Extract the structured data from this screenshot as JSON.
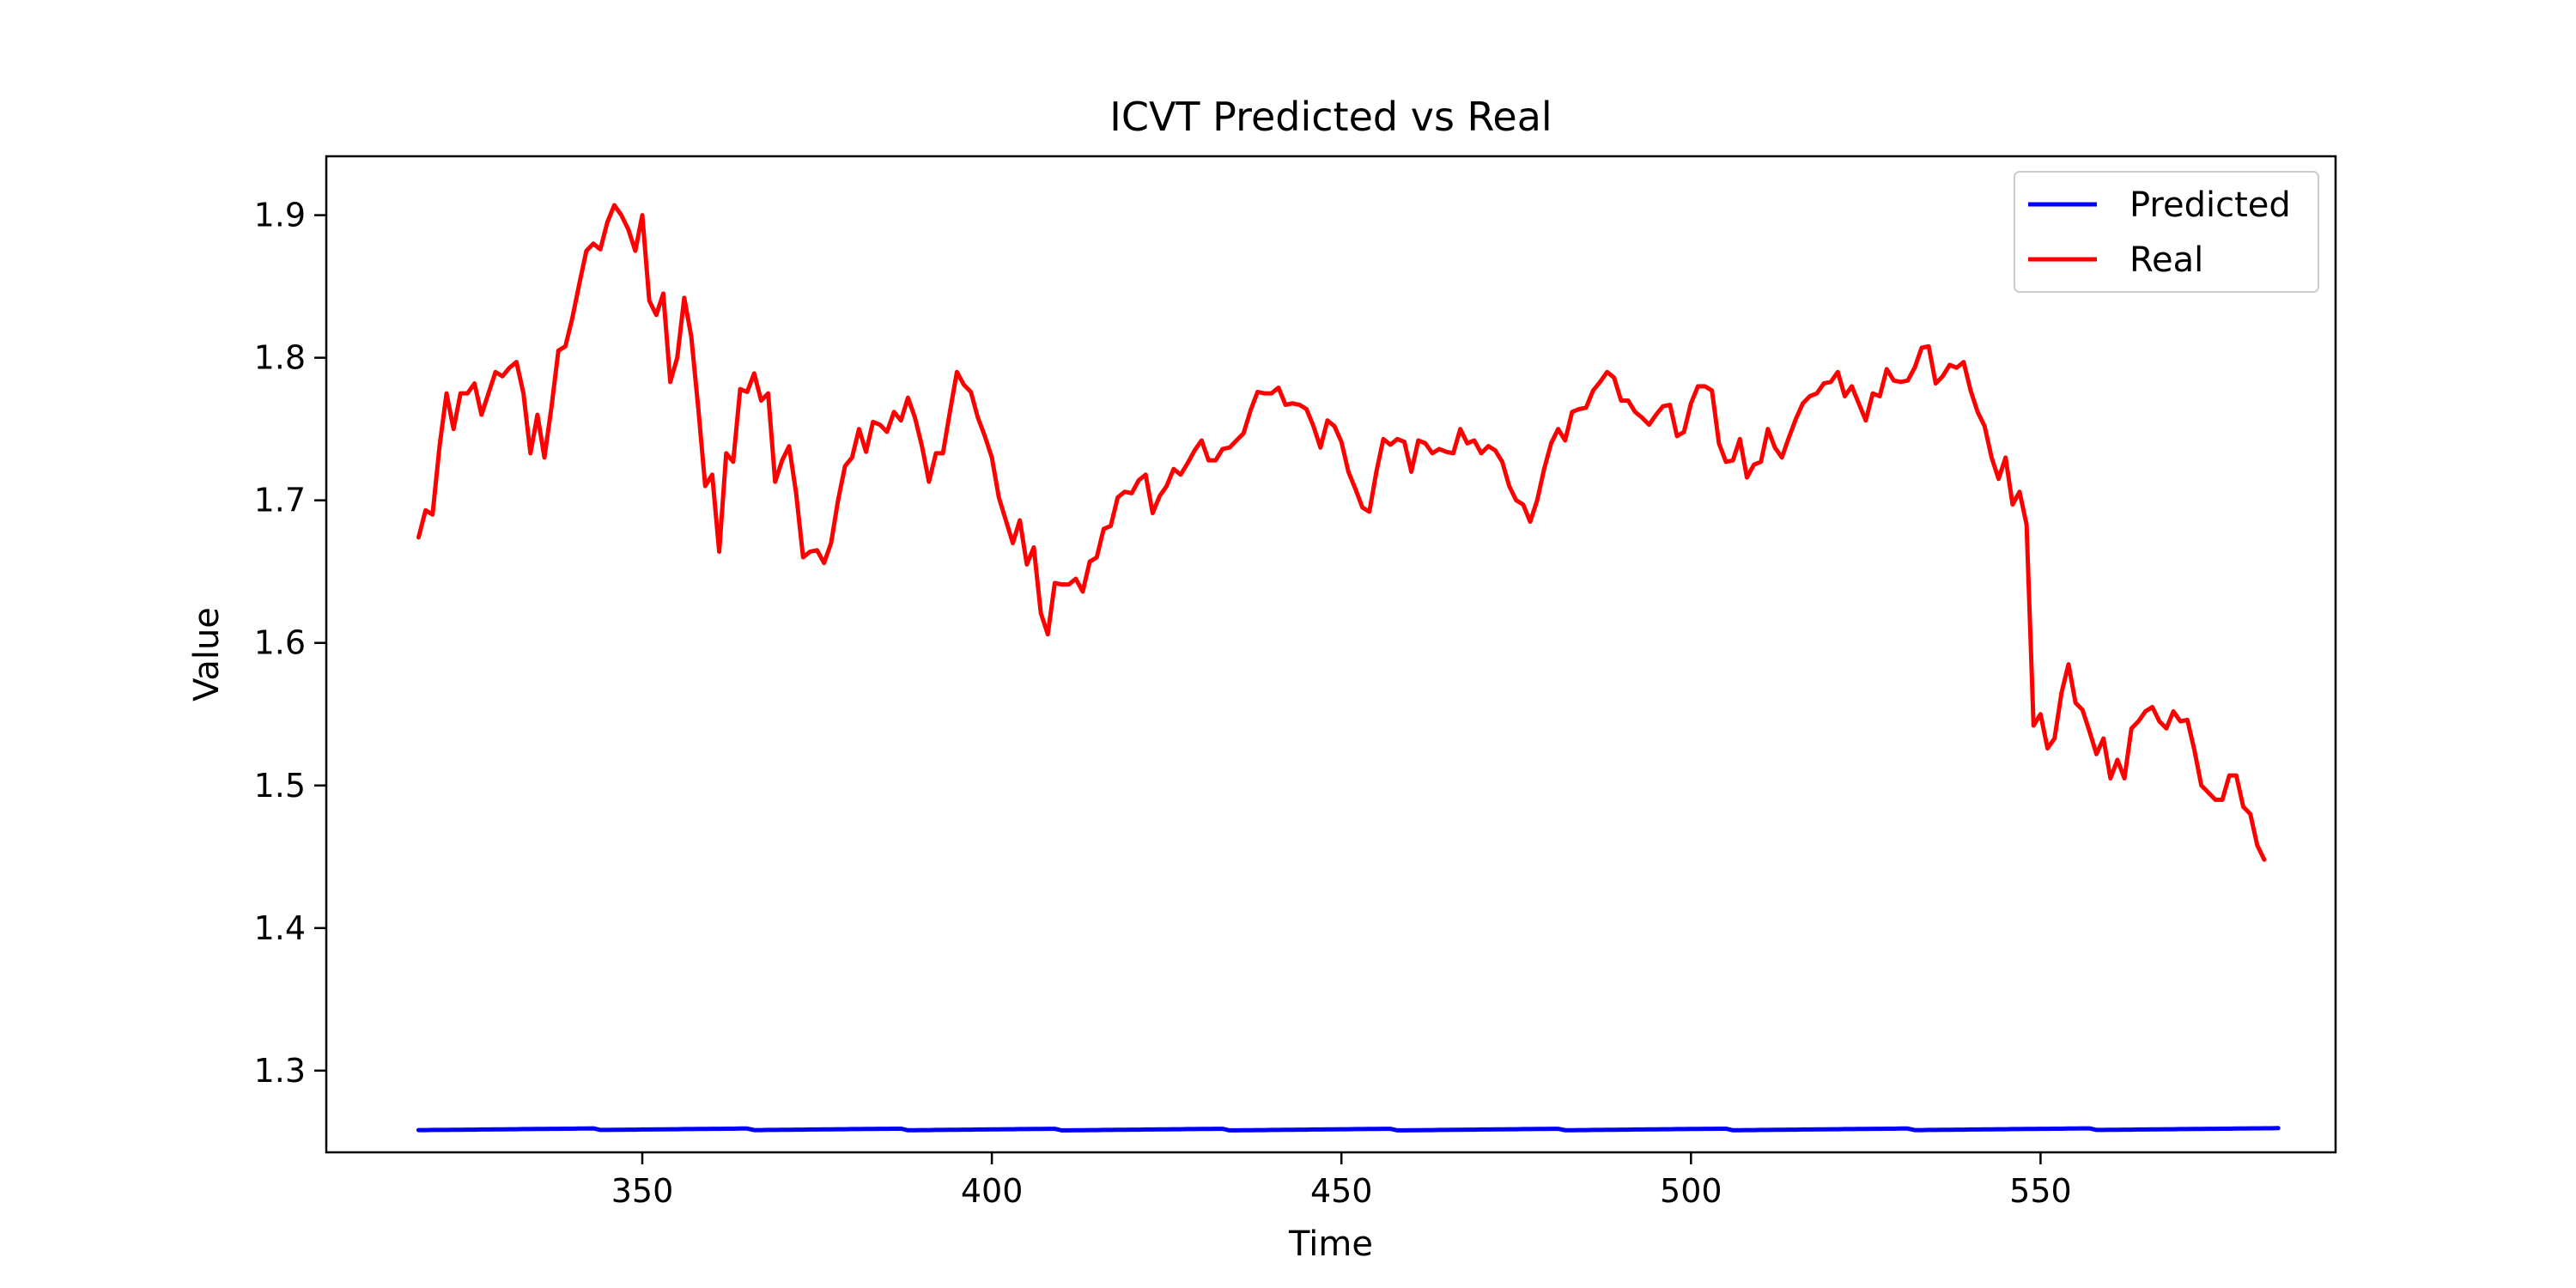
{
  "chart_data": {
    "type": "line",
    "title": "ICVT Predicted vs Real",
    "xlabel": "Time",
    "ylabel": "Value",
    "xlim": [
      304.8,
      592.2
    ],
    "ylim": [
      1.2427,
      1.9413
    ],
    "xticks": [
      350,
      400,
      450,
      500,
      550
    ],
    "xtick_labels": [
      "350",
      "400",
      "450",
      "500",
      "550"
    ],
    "yticks": [
      1.3,
      1.4,
      1.5,
      1.6,
      1.7,
      1.8,
      1.9
    ],
    "ytick_labels": [
      "1.3",
      "1.4",
      "1.5",
      "1.6",
      "1.7",
      "1.8",
      "1.9"
    ],
    "grid": false,
    "legend": {
      "placement": "top-right",
      "entries": [
        "Predicted",
        "Real"
      ]
    },
    "x": {
      "start": 318,
      "end": 580,
      "step": 1
    },
    "series": [
      {
        "name": "Predicted",
        "color": "#0000ff",
        "values": [
          1.2583,
          1.2583,
          1.2584,
          1.2584,
          1.2584,
          1.2585,
          1.2585,
          1.2586,
          1.2586,
          1.2587,
          1.2587,
          1.2588,
          1.2588,
          1.2589,
          1.2589,
          1.259,
          1.259,
          1.2591,
          1.2591,
          1.2592,
          1.2592,
          1.2593,
          1.2593,
          1.2594,
          1.2594,
          1.2595,
          1.2584,
          1.2584,
          1.2585,
          1.2585,
          1.2586,
          1.2586,
          1.2587,
          1.2587,
          1.2588,
          1.2588,
          1.2589,
          1.2589,
          1.259,
          1.259,
          1.2591,
          1.2591,
          1.2592,
          1.2592,
          1.2593,
          1.2593,
          1.2594,
          1.2594,
          1.2583,
          1.2583,
          1.2584,
          1.2584,
          1.2585,
          1.2585,
          1.2586,
          1.2586,
          1.2587,
          1.2587,
          1.2588,
          1.2588,
          1.2589,
          1.2589,
          1.259,
          1.259,
          1.2591,
          1.2591,
          1.2592,
          1.2592,
          1.2593,
          1.2593,
          1.2582,
          1.2582,
          1.2583,
          1.2583,
          1.2584,
          1.2584,
          1.2585,
          1.2585,
          1.2586,
          1.2586,
          1.2587,
          1.2587,
          1.2588,
          1.2588,
          1.2589,
          1.2589,
          1.259,
          1.259,
          1.2591,
          1.2591,
          1.2592,
          1.2592,
          1.2581,
          1.2581,
          1.2582,
          1.2582,
          1.2583,
          1.2583,
          1.2584,
          1.2584,
          1.2585,
          1.2585,
          1.2586,
          1.2586,
          1.2587,
          1.2587,
          1.2588,
          1.2588,
          1.2589,
          1.2589,
          1.259,
          1.259,
          1.2591,
          1.2591,
          1.2592,
          1.2592,
          1.2581,
          1.2581,
          1.2582,
          1.2582,
          1.2583,
          1.2583,
          1.2584,
          1.2584,
          1.2585,
          1.2585,
          1.2586,
          1.2586,
          1.2587,
          1.2587,
          1.2588,
          1.2588,
          1.2589,
          1.2589,
          1.259,
          1.259,
          1.2591,
          1.2591,
          1.2592,
          1.2592,
          1.2581,
          1.2581,
          1.2582,
          1.2582,
          1.2583,
          1.2583,
          1.2584,
          1.2584,
          1.2585,
          1.2585,
          1.2586,
          1.2586,
          1.2587,
          1.2587,
          1.2588,
          1.2588,
          1.2589,
          1.2589,
          1.259,
          1.259,
          1.2591,
          1.2591,
          1.2592,
          1.2592,
          1.2582,
          1.2582,
          1.2583,
          1.2583,
          1.2584,
          1.2584,
          1.2585,
          1.2585,
          1.2586,
          1.2586,
          1.2587,
          1.2587,
          1.2588,
          1.2588,
          1.2589,
          1.2589,
          1.259,
          1.259,
          1.2591,
          1.2591,
          1.2592,
          1.2592,
          1.2593,
          1.2593,
          1.2582,
          1.2582,
          1.2583,
          1.2583,
          1.2584,
          1.2584,
          1.2585,
          1.2585,
          1.2586,
          1.2586,
          1.2587,
          1.2587,
          1.2588,
          1.2588,
          1.2589,
          1.2589,
          1.259,
          1.259,
          1.2591,
          1.2591,
          1.2592,
          1.2592,
          1.2593,
          1.2593,
          1.2594,
          1.2594,
          1.2583,
          1.2583,
          1.2584,
          1.2584,
          1.2585,
          1.2585,
          1.2586,
          1.2586,
          1.2587,
          1.2587,
          1.2588,
          1.2588,
          1.2589,
          1.2589,
          1.259,
          1.259,
          1.2591,
          1.2591,
          1.2592,
          1.2592,
          1.2593,
          1.2593,
          1.2594,
          1.2594,
          1.2595,
          1.2595,
          1.2584,
          1.2584,
          1.2585,
          1.2585,
          1.2586,
          1.2586,
          1.2587,
          1.2587,
          1.2588,
          1.2588,
          1.2589,
          1.2589,
          1.259,
          1.259,
          1.2591,
          1.2591,
          1.2592,
          1.2592,
          1.2593,
          1.2593,
          1.2594,
          1.2594,
          1.2595,
          1.2595,
          1.2596,
          1.2596,
          1.2597
        ]
      },
      {
        "name": "Real",
        "color": "#ff0000",
        "values": [
          1.674,
          1.693,
          1.69,
          1.738,
          1.775,
          1.75,
          1.775,
          1.775,
          1.782,
          1.76,
          1.775,
          1.79,
          1.787,
          1.793,
          1.797,
          1.775,
          1.733,
          1.76,
          1.73,
          1.765,
          1.805,
          1.808,
          1.828,
          1.852,
          1.875,
          1.88,
          1.876,
          1.895,
          1.907,
          1.9,
          1.89,
          1.875,
          1.9,
          1.84,
          1.83,
          1.845,
          1.783,
          1.8,
          1.842,
          1.815,
          1.765,
          1.71,
          1.718,
          1.664,
          1.733,
          1.727,
          1.778,
          1.776,
          1.789,
          1.77,
          1.775,
          1.713,
          1.728,
          1.738,
          1.705,
          1.66,
          1.664,
          1.665,
          1.656,
          1.67,
          1.7,
          1.724,
          1.73,
          1.75,
          1.734,
          1.755,
          1.753,
          1.748,
          1.762,
          1.756,
          1.772,
          1.758,
          1.738,
          1.713,
          1.733,
          1.733,
          1.762,
          1.79,
          1.781,
          1.776,
          1.758,
          1.745,
          1.73,
          1.702,
          1.686,
          1.67,
          1.686,
          1.655,
          1.667,
          1.621,
          1.606,
          1.642,
          1.641,
          1.641,
          1.645,
          1.636,
          1.657,
          1.66,
          1.68,
          1.682,
          1.702,
          1.706,
          1.705,
          1.714,
          1.718,
          1.691,
          1.703,
          1.71,
          1.722,
          1.718,
          1.726,
          1.735,
          1.742,
          1.728,
          1.728,
          1.736,
          1.737,
          1.742,
          1.747,
          1.763,
          1.776,
          1.775,
          1.775,
          1.779,
          1.767,
          1.768,
          1.767,
          1.764,
          1.752,
          1.737,
          1.756,
          1.752,
          1.741,
          1.72,
          1.708,
          1.695,
          1.692,
          1.72,
          1.743,
          1.739,
          1.743,
          1.741,
          1.72,
          1.742,
          1.74,
          1.733,
          1.736,
          1.734,
          1.733,
          1.75,
          1.74,
          1.742,
          1.733,
          1.738,
          1.735,
          1.727,
          1.71,
          1.7,
          1.697,
          1.685,
          1.7,
          1.722,
          1.74,
          1.75,
          1.742,
          1.762,
          1.764,
          1.765,
          1.777,
          1.783,
          1.79,
          1.786,
          1.77,
          1.77,
          1.762,
          1.758,
          1.753,
          1.76,
          1.766,
          1.767,
          1.745,
          1.748,
          1.768,
          1.78,
          1.78,
          1.777,
          1.74,
          1.727,
          1.728,
          1.743,
          1.716,
          1.725,
          1.727,
          1.75,
          1.737,
          1.73,
          1.744,
          1.757,
          1.768,
          1.773,
          1.775,
          1.782,
          1.783,
          1.79,
          1.773,
          1.78,
          1.768,
          1.756,
          1.775,
          1.773,
          1.792,
          1.784,
          1.783,
          1.784,
          1.793,
          1.807,
          1.808,
          1.782,
          1.787,
          1.795,
          1.793,
          1.797,
          1.777,
          1.762,
          1.752,
          1.73,
          1.715,
          1.73,
          1.697,
          1.706,
          1.683,
          1.542,
          1.55,
          1.526,
          1.533,
          1.565,
          1.585,
          1.558,
          1.553,
          1.538,
          1.522,
          1.533,
          1.505,
          1.518,
          1.505,
          1.54,
          1.545,
          1.552,
          1.555,
          1.545,
          1.54,
          1.552,
          1.545,
          1.546,
          1.525,
          1.5,
          1.495,
          1.49,
          1.49,
          1.507,
          1.507,
          1.485,
          1.48,
          1.458,
          1.448
        ]
      }
    ]
  }
}
